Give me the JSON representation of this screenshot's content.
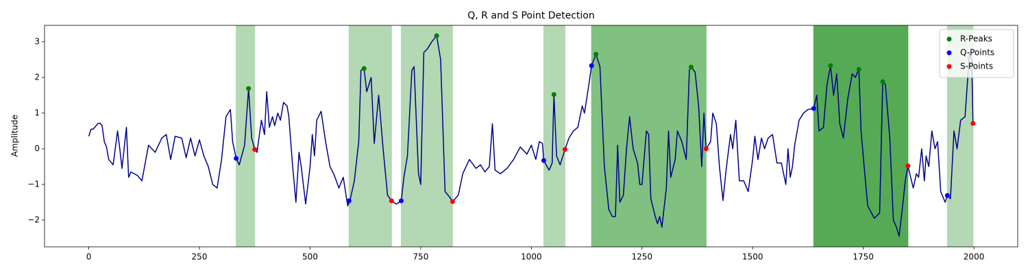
{
  "chart_data": {
    "type": "line",
    "title": "Q, R and S Point Detection",
    "y_label": "Amplitude",
    "color": "#00008b",
    "xlim": [
      -100,
      2099
    ],
    "ylim": [
      -2.75,
      3.46
    ],
    "xticks": [
      0,
      250,
      500,
      750,
      1000,
      1250,
      1500,
      1750,
      2000
    ],
    "yticks": [
      {
        "value": -2,
        "label": "−2"
      },
      {
        "value": -1,
        "label": "−1"
      },
      0,
      1,
      2,
      3
    ],
    "legend": "upper right",
    "spans": [
      {
        "start": 333,
        "end": 375,
        "color": "#b3d8b3"
      },
      {
        "start": 588,
        "end": 684,
        "color": "#b3d8b3"
      },
      {
        "start": 706,
        "end": 822,
        "color": "#b3d8b3"
      },
      {
        "start": 1028,
        "end": 1076,
        "color": "#b3d8b3"
      },
      {
        "start": 1136,
        "end": 1395,
        "color": "#80c080"
      },
      {
        "start": 1638,
        "end": 1851,
        "color": "#56aa56"
      },
      {
        "start": 1940,
        "end": 1998,
        "color": "#b3d8b3"
      }
    ],
    "x": [
      0,
      5,
      10,
      20,
      25,
      30,
      35,
      40,
      45,
      55,
      65,
      70,
      75,
      85,
      90,
      95,
      110,
      120,
      135,
      150,
      165,
      175,
      185,
      195,
      210,
      220,
      230,
      240,
      250,
      260,
      270,
      280,
      290,
      300,
      310,
      320,
      325,
      333,
      340,
      352,
      361,
      368,
      375,
      380,
      390,
      397,
      402,
      408,
      415,
      420,
      427,
      433,
      440,
      448,
      452,
      460,
      468,
      475,
      480,
      490,
      500,
      505,
      510,
      515,
      525,
      535,
      545,
      555,
      565,
      575,
      585,
      590,
      600,
      610,
      615,
      622,
      628,
      638,
      645,
      655,
      665,
      675,
      684,
      695,
      706,
      712,
      720,
      730,
      735,
      745,
      750,
      757,
      765,
      775,
      786,
      795,
      805,
      815,
      822,
      835,
      845,
      860,
      875,
      885,
      895,
      905,
      912,
      918,
      930,
      945,
      960,
      975,
      990,
      1000,
      1010,
      1018,
      1025,
      1028,
      1040,
      1047,
      1051,
      1057,
      1065,
      1076,
      1085,
      1095,
      1105,
      1115,
      1120,
      1130,
      1136,
      1146,
      1155,
      1165,
      1175,
      1183,
      1190,
      1195,
      1200,
      1208,
      1215,
      1222,
      1230,
      1240,
      1245,
      1250,
      1260,
      1265,
      1270,
      1280,
      1285,
      1290,
      1295,
      1305,
      1310,
      1315,
      1325,
      1330,
      1340,
      1350,
      1357,
      1361,
      1370,
      1378,
      1385,
      1390,
      1395,
      1405,
      1410,
      1418,
      1425,
      1433,
      1440,
      1450,
      1455,
      1462,
      1470,
      1480,
      1490,
      1500,
      1505,
      1512,
      1520,
      1527,
      1535,
      1545,
      1555,
      1565,
      1575,
      1580,
      1585,
      1590,
      1595,
      1605,
      1615,
      1625,
      1638,
      1645,
      1650,
      1660,
      1668,
      1676,
      1683,
      1690,
      1697,
      1705,
      1715,
      1725,
      1732,
      1740,
      1745,
      1752,
      1760,
      1775,
      1787,
      1794,
      1800,
      1810,
      1818,
      1825,
      1831,
      1838,
      1845,
      1851,
      1857,
      1863,
      1870,
      1875,
      1882,
      1888,
      1892,
      1898,
      1905,
      1912,
      1918,
      1925,
      1935,
      1940,
      1947,
      1955,
      1962,
      1970,
      1980,
      1990,
      1995,
      1998
    ],
    "values": [
      0.35,
      0.55,
      0.55,
      0.7,
      0.72,
      0.65,
      0.2,
      0.05,
      -0.3,
      -0.45,
      0.5,
      0.0,
      -0.55,
      0.6,
      -0.8,
      -0.65,
      -0.75,
      -0.9,
      0.1,
      -0.1,
      0.3,
      0.4,
      -0.3,
      0.35,
      0.3,
      -0.25,
      0.3,
      -0.2,
      0.25,
      -0.2,
      -0.5,
      -1.0,
      -1.1,
      -0.3,
      0.9,
      1.1,
      0.2,
      -0.27,
      -0.45,
      0.1,
      1.69,
      0.3,
      -0.02,
      -0.1,
      0.8,
      0.4,
      1.6,
      0.6,
      0.9,
      0.65,
      1.0,
      0.8,
      1.3,
      1.2,
      0.9,
      -0.4,
      -1.5,
      -0.1,
      -0.5,
      -1.55,
      -0.5,
      0.4,
      -0.2,
      0.8,
      1.05,
      0.2,
      -0.5,
      -0.75,
      -1.1,
      -0.8,
      -1.6,
      -1.46,
      -0.9,
      0.2,
      2.2,
      2.25,
      1.6,
      2.0,
      0.15,
      1.5,
      0.0,
      -1.3,
      -1.46,
      -1.55,
      -1.46,
      -0.8,
      -0.2,
      2.2,
      2.3,
      -0.7,
      -1.0,
      2.7,
      2.8,
      3.0,
      3.17,
      2.5,
      -1.2,
      -1.35,
      -1.48,
      -1.3,
      -0.7,
      -0.3,
      -0.55,
      -0.45,
      -0.65,
      -0.5,
      0.7,
      -0.6,
      -0.7,
      -0.55,
      -0.3,
      0.05,
      -0.15,
      0.1,
      -0.3,
      0.2,
      0.15,
      -0.33,
      -0.6,
      -0.4,
      1.52,
      -0.2,
      -0.45,
      -0.02,
      0.3,
      0.5,
      0.6,
      1.2,
      1.0,
      1.8,
      2.33,
      2.65,
      2.3,
      -0.5,
      -1.7,
      -1.9,
      -1.9,
      0.1,
      -1.5,
      -1.3,
      0.0,
      0.9,
      0.0,
      -0.4,
      -1.0,
      -1.0,
      0.5,
      0.4,
      -1.4,
      -1.9,
      -2.1,
      -1.9,
      -2.2,
      -1.1,
      0.5,
      -0.8,
      -0.3,
      0.5,
      0.2,
      -0.3,
      2.2,
      2.29,
      2.15,
      1.2,
      -0.5,
      1.0,
      0.0,
      0.2,
      1.0,
      0.7,
      -0.5,
      -1.45,
      -0.6,
      0.4,
      0.0,
      0.8,
      -0.9,
      -0.9,
      -1.2,
      -0.3,
      0.35,
      -0.3,
      0.3,
      0.0,
      0.3,
      0.4,
      -0.4,
      -0.4,
      -1.0,
      0.0,
      -0.8,
      -0.5,
      0.1,
      0.8,
      1.0,
      1.1,
      1.13,
      1.5,
      0.5,
      0.6,
      1.8,
      2.33,
      1.5,
      2.1,
      0.7,
      0.3,
      1.4,
      2.1,
      2.0,
      2.23,
      0.5,
      -0.5,
      -1.6,
      -1.95,
      -1.8,
      1.88,
      1.8,
      0.3,
      -2.0,
      -2.2,
      -2.45,
      -1.7,
      -0.9,
      -0.48,
      -0.8,
      -1.1,
      -0.7,
      -0.8,
      0.0,
      -0.9,
      -0.2,
      -0.5,
      0.5,
      0.0,
      0.2,
      -1.2,
      -1.5,
      -1.31,
      -1.4,
      0.5,
      0.0,
      0.8,
      0.9,
      2.7,
      2.5,
      0.71
    ],
    "markers": [
      {
        "name": "R-Peaks",
        "color": "#008000",
        "x": [
          361,
          622,
          786,
          1051,
          1146,
          1361,
          1676,
          1740,
          1794
        ],
        "values": [
          1.69,
          2.25,
          3.17,
          1.52,
          2.65,
          2.29,
          2.33,
          2.23,
          1.88
        ]
      },
      {
        "name": "Q-Points",
        "color": "#0000ff",
        "x": [
          333,
          588,
          706,
          1028,
          1136,
          1638,
          1940
        ],
        "values": [
          -0.27,
          -1.46,
          -1.46,
          -0.33,
          2.33,
          1.13,
          -1.31
        ]
      },
      {
        "name": "S-Points",
        "color": "#ff0000",
        "x": [
          375,
          684,
          822,
          1076,
          1395,
          1851,
          1998
        ],
        "values": [
          -0.02,
          -1.46,
          -1.48,
          -0.02,
          0.0,
          -0.48,
          0.71
        ]
      }
    ]
  }
}
